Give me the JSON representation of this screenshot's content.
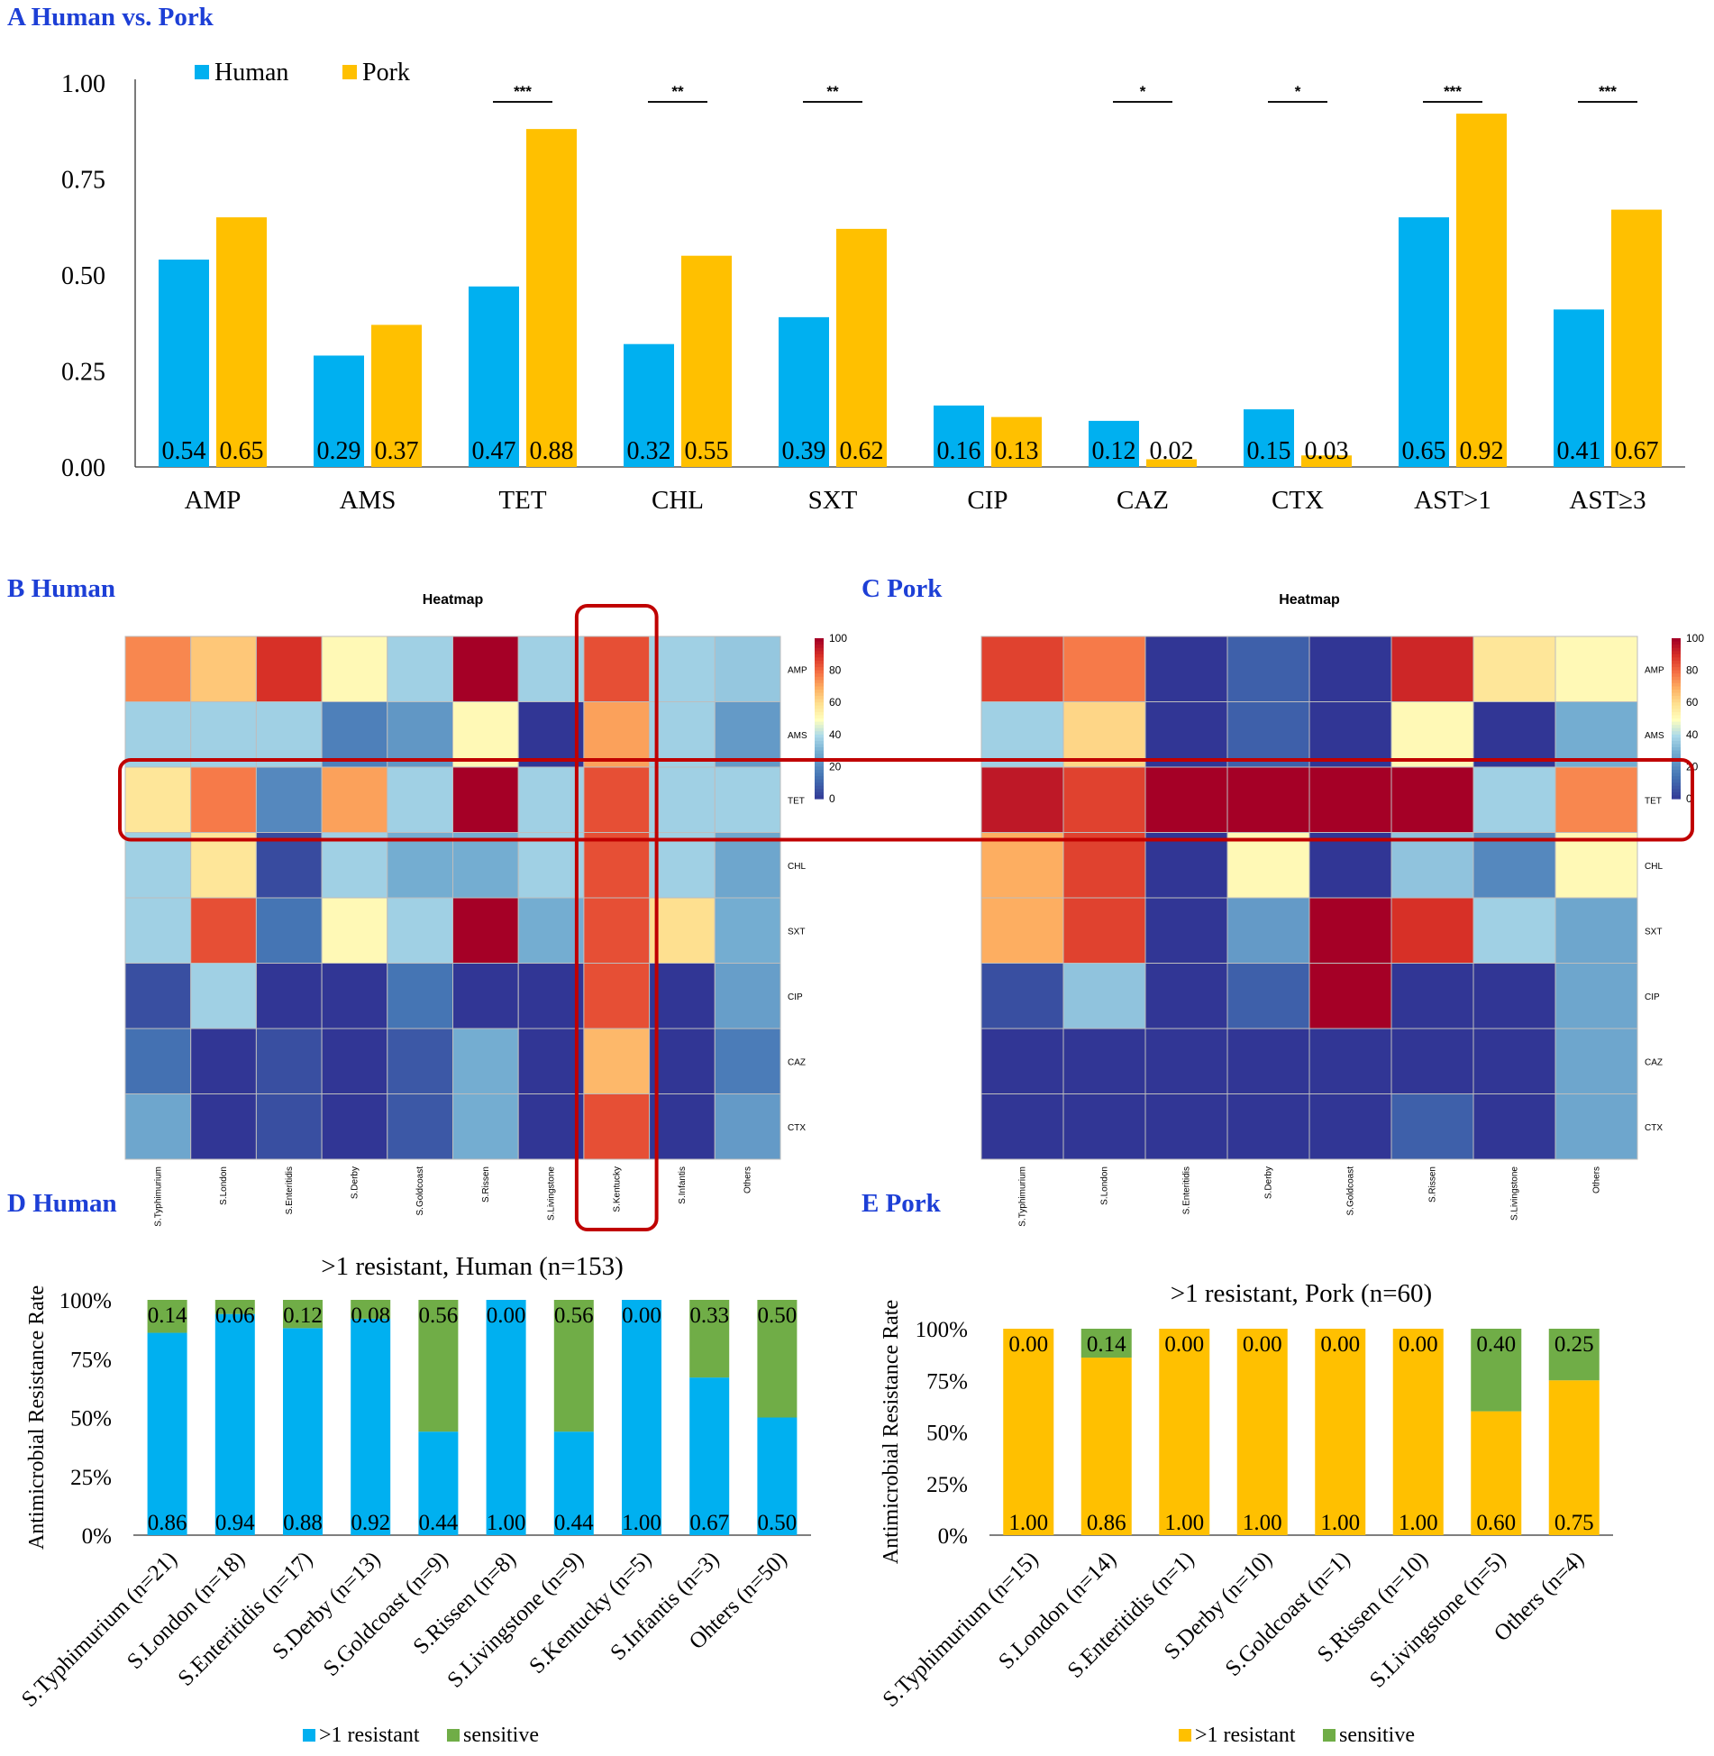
{
  "colors": {
    "human": "#00b0f0",
    "pork": "#ffc000",
    "sensitive": "#70ad47",
    "title": "#1d3fd6",
    "highlight": "#c00000"
  },
  "panels": {
    "A": {
      "label": "A Human vs. Pork"
    },
    "B": {
      "label": "B Human"
    },
    "C": {
      "label": "C Pork"
    },
    "D": {
      "label": "D Human"
    },
    "E": {
      "label": "E Pork"
    }
  },
  "chart_data": [
    {
      "id": "A",
      "type": "bar",
      "title": "Human vs. Pork",
      "categories": [
        "AMP",
        "AMS",
        "TET",
        "CHL",
        "SXT",
        "CIP",
        "CAZ",
        "CTX",
        "AST>1",
        "AST≥3"
      ],
      "series": [
        {
          "name": "Human",
          "values": [
            0.54,
            0.29,
            0.47,
            0.32,
            0.39,
            0.16,
            0.12,
            0.15,
            0.65,
            0.41
          ]
        },
        {
          "name": "Pork",
          "values": [
            0.65,
            0.37,
            0.88,
            0.55,
            0.62,
            0.13,
            0.02,
            0.03,
            0.92,
            0.67
          ]
        }
      ],
      "value_labels": {
        "Human": [
          "0.54",
          "0.29",
          "0.47",
          "0.32",
          "0.39",
          "0.16",
          "0.12",
          "0.15",
          "0.65",
          "0.41"
        ],
        "Pork": [
          "0.65",
          "0.37",
          "0.88",
          "0.55",
          "0.62",
          "0.13",
          "0.02",
          "0.03",
          "0.92",
          "0.67"
        ]
      },
      "significance": [
        "",
        "",
        "***",
        "**",
        "**",
        "",
        "*",
        "*",
        "***",
        "***"
      ],
      "ylim": [
        0,
        1
      ],
      "yticks": [
        "0.00",
        "0.25",
        "0.50",
        "0.75",
        "1.00"
      ],
      "legend": [
        "Human",
        "Pork"
      ],
      "legend_position": "top-left"
    },
    {
      "id": "B",
      "type": "heatmap",
      "title": "Heatmap",
      "rows": [
        "AMP",
        "AMS",
        "TET",
        "CHL",
        "SXT",
        "CIP",
        "CAZ",
        "CTX"
      ],
      "columns": [
        "S.Typhimurium",
        "S.London",
        "S.Enteritidis",
        "S.Derby",
        "S.Goldcoast",
        "S.Rissen",
        "S.Livingstone",
        "S.Kentucky",
        "S.Infantis",
        "Others"
      ],
      "values": [
        [
          76,
          65,
          90,
          52,
          38,
          100,
          38,
          85,
          38,
          36
        ],
        [
          38,
          38,
          38,
          18,
          24,
          52,
          0,
          72,
          38,
          25
        ],
        [
          58,
          78,
          20,
          72,
          38,
          100,
          38,
          85,
          38,
          38
        ],
        [
          38,
          58,
          5,
          38,
          30,
          30,
          38,
          85,
          38,
          28
        ],
        [
          38,
          85,
          15,
          52,
          38,
          100,
          30,
          85,
          60,
          30
        ],
        [
          6,
          38,
          0,
          0,
          15,
          0,
          0,
          85,
          0,
          26
        ],
        [
          14,
          0,
          6,
          0,
          8,
          30,
          0,
          68,
          0,
          17
        ],
        [
          28,
          0,
          6,
          0,
          8,
          30,
          0,
          85,
          0,
          25
        ]
      ],
      "color_scale": {
        "min": 0,
        "max": 100,
        "ticks": [
          "100",
          "80",
          "60",
          "40",
          "20",
          "0"
        ]
      },
      "highlight_row": "TET",
      "highlight_column": "S.Kentucky"
    },
    {
      "id": "C",
      "type": "heatmap",
      "title": "Heatmap",
      "rows": [
        "AMP",
        "AMS",
        "TET",
        "CHL",
        "SXT",
        "CIP",
        "CAZ",
        "CTX"
      ],
      "columns": [
        "S.Typhimurium",
        "S.London",
        "S.Enteritidis",
        "S.Derby",
        "S.Goldcoast",
        "S.Rissen",
        "S.Livingstone",
        "Others"
      ],
      "values": [
        [
          87,
          78,
          0,
          10,
          0,
          92,
          58,
          52
        ],
        [
          38,
          62,
          0,
          10,
          0,
          52,
          0,
          30
        ],
        [
          95,
          87,
          100,
          100,
          100,
          100,
          38,
          76
        ],
        [
          70,
          87,
          0,
          52,
          0,
          35,
          20,
          52
        ],
        [
          70,
          87,
          0,
          25,
          100,
          90,
          38,
          28
        ],
        [
          6,
          35,
          0,
          10,
          100,
          0,
          0,
          28
        ],
        [
          0,
          0,
          0,
          0,
          0,
          0,
          0,
          28
        ],
        [
          0,
          0,
          0,
          0,
          0,
          10,
          0,
          28
        ]
      ],
      "color_scale": {
        "min": 0,
        "max": 100,
        "ticks": [
          "100",
          "80",
          "60",
          "40",
          "20",
          "0"
        ]
      },
      "highlight_row": "TET"
    },
    {
      "id": "D",
      "type": "bar",
      "stacked": true,
      "title": ">1 resistant, Human (n=153)",
      "ylabel": "Antimicrobial Resistance Rate",
      "yticks": [
        "0%",
        "25%",
        "50%",
        "75%",
        "100%"
      ],
      "ylim": [
        0,
        1
      ],
      "categories": [
        "S.Typhimurium (n=21)",
        "S.London (n=18)",
        "S.Enteritidis (n=17)",
        "S.Derby (n=13)",
        "S.Goldcoast (n=9)",
        "S.Rissen (n=8)",
        "S.Livingstone (n=9)",
        "S.Kentucky (n=5)",
        "S.Infantis (n=3)",
        "Ohters (n=50)"
      ],
      "series": [
        {
          "name": ">1 resistant",
          "values": [
            0.86,
            0.94,
            0.88,
            0.92,
            0.44,
            1.0,
            0.44,
            1.0,
            0.67,
            0.5
          ],
          "labels": [
            "0.86",
            "0.94",
            "0.88",
            "0.92",
            "0.44",
            "1.00",
            "0.44",
            "1.00",
            "0.67",
            "0.50"
          ]
        },
        {
          "name": "sensitive",
          "values": [
            0.14,
            0.06,
            0.12,
            0.08,
            0.56,
            0.0,
            0.56,
            0.0,
            0.33,
            0.5
          ],
          "labels": [
            "0.14",
            "0.06",
            "0.12",
            "0.08",
            "0.56",
            "0.00",
            "0.56",
            "0.00",
            "0.33",
            "0.50"
          ]
        }
      ],
      "legend": [
        ">1 resistant",
        "sensitive"
      ],
      "legend_position": "bottom"
    },
    {
      "id": "E",
      "type": "bar",
      "stacked": true,
      "title": ">1 resistant, Pork (n=60)",
      "ylabel": "Antimicrobial Resistance Rate",
      "yticks": [
        "0%",
        "25%",
        "50%",
        "75%",
        "100%"
      ],
      "ylim": [
        0,
        1
      ],
      "categories": [
        "S.Typhimurium (n=15)",
        "S.London (n=14)",
        "S.Enteritidis (n=1)",
        "S.Derby (n=10)",
        "S.Goldcoast (n=1)",
        "S.Rissen (n=10)",
        "S.Livingstone (n=5)",
        "Others (n=4)"
      ],
      "series": [
        {
          "name": ">1 resistant",
          "values": [
            1.0,
            0.86,
            1.0,
            1.0,
            1.0,
            1.0,
            0.6,
            0.75
          ],
          "labels": [
            "1.00",
            "0.86",
            "1.00",
            "1.00",
            "1.00",
            "1.00",
            "0.60",
            "0.75"
          ]
        },
        {
          "name": "sensitive",
          "values": [
            0.0,
            0.14,
            0.0,
            0.0,
            0.0,
            0.0,
            0.4,
            0.25
          ],
          "labels": [
            "0.00",
            "0.14",
            "0.00",
            "0.00",
            "0.00",
            "0.00",
            "0.40",
            "0.25"
          ]
        }
      ],
      "legend": [
        ">1 resistant",
        "sensitive"
      ],
      "legend_position": "bottom"
    }
  ]
}
